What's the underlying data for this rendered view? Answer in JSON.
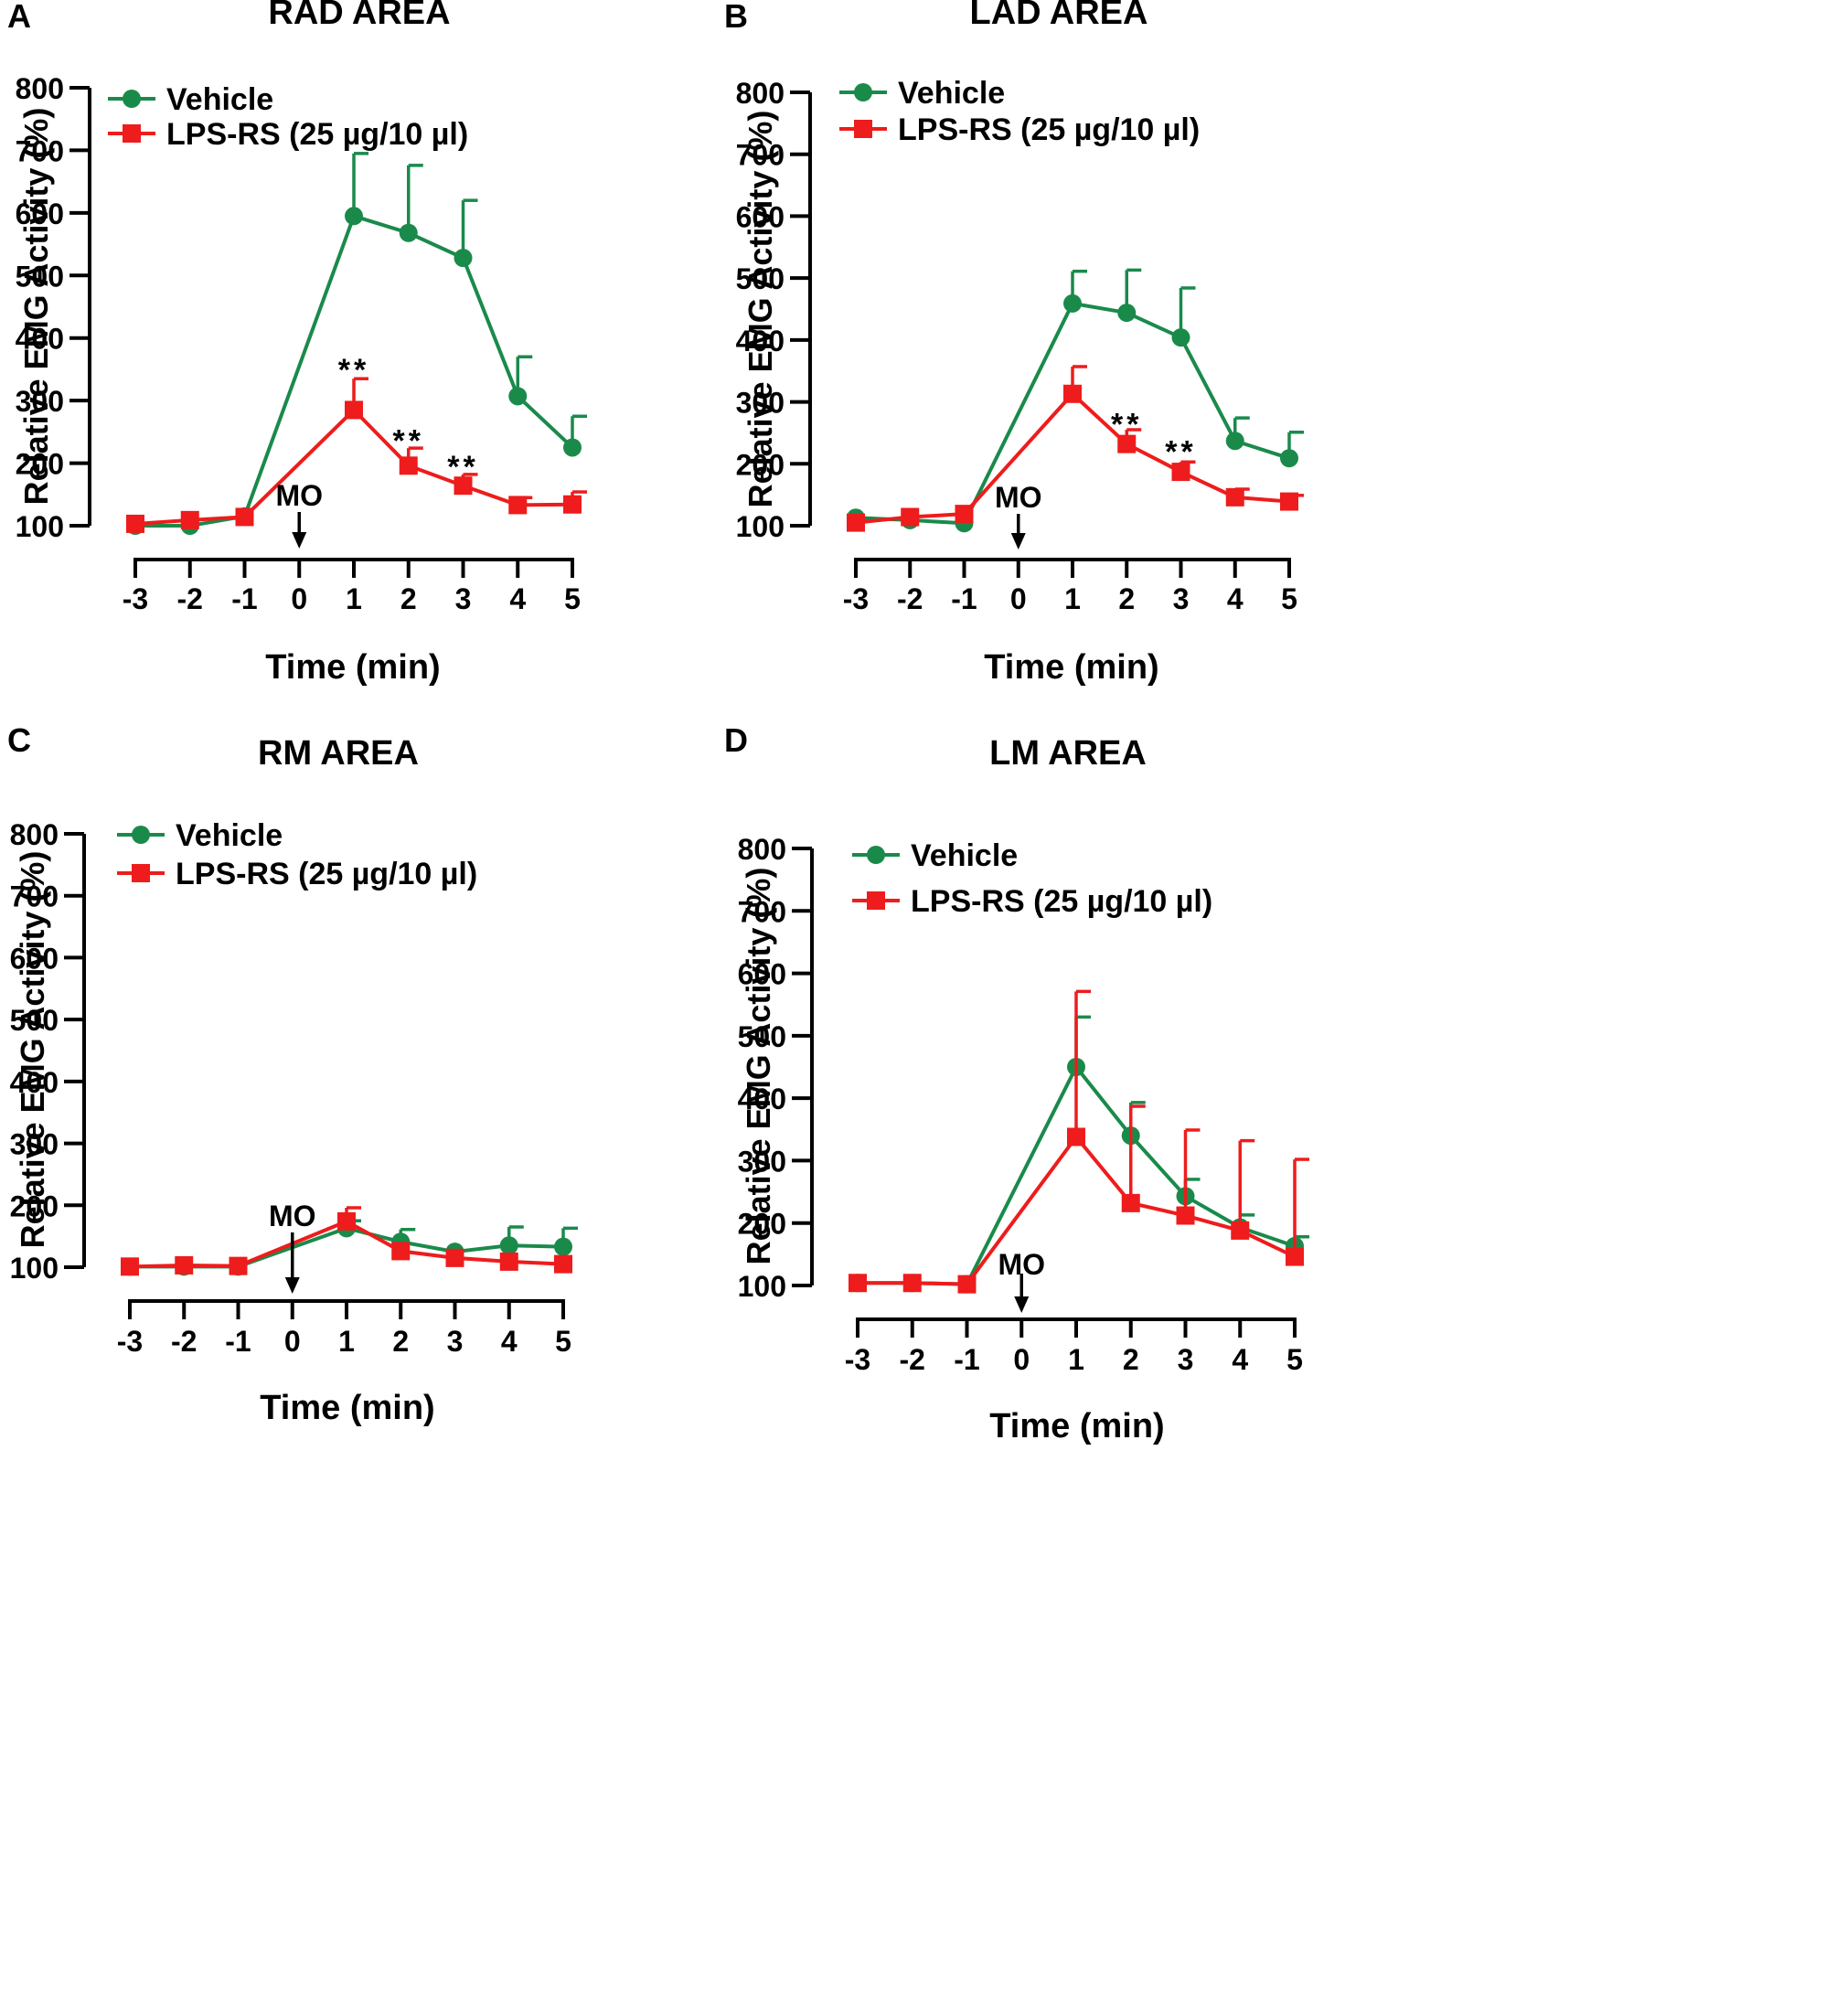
{
  "colors": {
    "vehicle": "#1a8a4b",
    "lps": "#ee1c1c",
    "axis": "#000000"
  },
  "chart_data": [
    {
      "panel": "A",
      "title": "RAD AREA",
      "type": "line",
      "xlabel": "Time (min)",
      "ylabel": "Relative EMG Activity (%)",
      "x": [
        -3,
        -2,
        -1,
        0,
        1,
        2,
        3,
        4,
        5
      ],
      "xticks": [
        "-3",
        "-2",
        "-1",
        "0",
        "1",
        "2",
        "3",
        "4",
        "5"
      ],
      "yticks": [
        "100",
        "200",
        "300",
        "400",
        "500",
        "600",
        "700",
        "800"
      ],
      "ylim": [
        100,
        800
      ],
      "marker_label": "MO",
      "marker_x": 0,
      "series": [
        {
          "name": "Vehicle",
          "marker": "circle",
          "x": [
            -3,
            -2,
            -1,
            1,
            2,
            3,
            4,
            5
          ],
          "values": [
            100,
            100,
            115,
            595,
            568,
            528,
            307,
            225
          ],
          "errors": [
            0,
            0,
            0,
            100,
            108,
            92,
            63,
            50
          ]
        },
        {
          "name": "LPS-RS (25 µg/10 µl)",
          "marker": "square",
          "x": [
            -3,
            -2,
            -1,
            1,
            2,
            3,
            4,
            5
          ],
          "values": [
            103,
            109,
            114,
            285,
            196,
            164,
            133,
            134
          ],
          "errors": [
            0,
            0,
            0,
            50,
            28,
            18,
            12,
            20
          ]
        }
      ],
      "annotations": [
        {
          "x": 1,
          "y": 350,
          "text": "**"
        },
        {
          "x": 2,
          "y": 237,
          "text": "**"
        },
        {
          "x": 3,
          "y": 195,
          "text": "**"
        }
      ]
    },
    {
      "panel": "B",
      "title": "LAD AREA",
      "type": "line",
      "xlabel": "Time (min)",
      "ylabel": "Relative EMG Activity (%)",
      "x": [
        -3,
        -2,
        -1,
        0,
        1,
        2,
        3,
        4,
        5
      ],
      "xticks": [
        "-3",
        "-2",
        "-1",
        "0",
        "1",
        "2",
        "3",
        "4",
        "5"
      ],
      "yticks": [
        "100",
        "200",
        "300",
        "400",
        "500",
        "600",
        "700",
        "800"
      ],
      "ylim": [
        100,
        800
      ],
      "marker_label": "MO",
      "marker_x": 0,
      "series": [
        {
          "name": "Vehicle",
          "marker": "circle",
          "x": [
            -3,
            -2,
            -1,
            1,
            2,
            3,
            4,
            5
          ],
          "values": [
            113,
            109,
            104,
            459,
            444,
            404,
            237,
            209
          ],
          "errors": [
            0,
            0,
            0,
            52,
            69,
            80,
            37,
            42
          ]
        },
        {
          "name": "LPS-RS (25 µg/10 µl)",
          "marker": "square",
          "x": [
            -3,
            -2,
            -1,
            1,
            2,
            3,
            4,
            5
          ],
          "values": [
            105,
            114,
            119,
            313,
            232,
            187,
            146,
            139
          ],
          "errors": [
            0,
            0,
            0,
            44,
            23,
            16,
            13,
            10
          ]
        }
      ],
      "annotations": [
        {
          "x": 2,
          "y": 265,
          "text": "**"
        },
        {
          "x": 3,
          "y": 220,
          "text": "**"
        }
      ]
    },
    {
      "panel": "C",
      "title": "RM AREA",
      "type": "line",
      "xlabel": "Time (min)",
      "ylabel": "Relative EMG Activity (%)",
      "x": [
        -3,
        -2,
        -1,
        0,
        1,
        2,
        3,
        4,
        5
      ],
      "xticks": [
        "-3",
        "-2",
        "-1",
        "0",
        "1",
        "2",
        "3",
        "4",
        "5"
      ],
      "yticks": [
        "100",
        "200",
        "300",
        "400",
        "500",
        "600",
        "700",
        "800"
      ],
      "ylim": [
        100,
        800
      ],
      "marker_label": "MO",
      "marker_x": 0,
      "series": [
        {
          "name": "Vehicle",
          "marker": "circle",
          "x": [
            -3,
            -2,
            -1,
            1,
            2,
            3,
            4,
            5
          ],
          "values": [
            101,
            101,
            101,
            163,
            141,
            125,
            135,
            133
          ],
          "errors": [
            0,
            0,
            0,
            12,
            20,
            0,
            30,
            30
          ]
        },
        {
          "name": "LPS-RS (25 µg/10 µl)",
          "marker": "square",
          "x": [
            -3,
            -2,
            -1,
            1,
            2,
            3,
            4,
            5
          ],
          "values": [
            101,
            103,
            102,
            174,
            126,
            115,
            109,
            105
          ],
          "errors": [
            0,
            0,
            0,
            22,
            0,
            0,
            0,
            0
          ]
        }
      ],
      "annotations": []
    },
    {
      "panel": "D",
      "title": "LM AREA",
      "type": "line",
      "xlabel": "Time (min)",
      "ylabel": "Relative EMG Activity (%)",
      "x": [
        -3,
        -2,
        -1,
        0,
        1,
        2,
        3,
        4,
        5
      ],
      "xticks": [
        "-3",
        "-2",
        "-1",
        "0",
        "1",
        "2",
        "3",
        "4",
        "5"
      ],
      "yticks": [
        "100",
        "200",
        "300",
        "400",
        "500",
        "600",
        "700",
        "800"
      ],
      "ylim": [
        100,
        800
      ],
      "marker_label": "MO",
      "marker_x": 0,
      "series": [
        {
          "name": "Vehicle",
          "marker": "circle",
          "x": [
            -3,
            -2,
            -1,
            1,
            2,
            3,
            4,
            5
          ],
          "values": [
            104,
            104,
            102,
            450,
            340,
            243,
            193,
            163
          ],
          "errors": [
            0,
            0,
            0,
            80,
            53,
            27,
            20,
            15
          ]
        },
        {
          "name": "LPS-RS (25 µg/10 µl)",
          "marker": "square",
          "x": [
            -3,
            -2,
            -1,
            1,
            2,
            3,
            4,
            5
          ],
          "values": [
            104,
            104,
            102,
            338,
            232,
            212,
            188,
            146
          ],
          "errors": [
            0,
            0,
            0,
            233,
            155,
            137,
            144,
            156
          ]
        }
      ],
      "annotations": []
    }
  ]
}
